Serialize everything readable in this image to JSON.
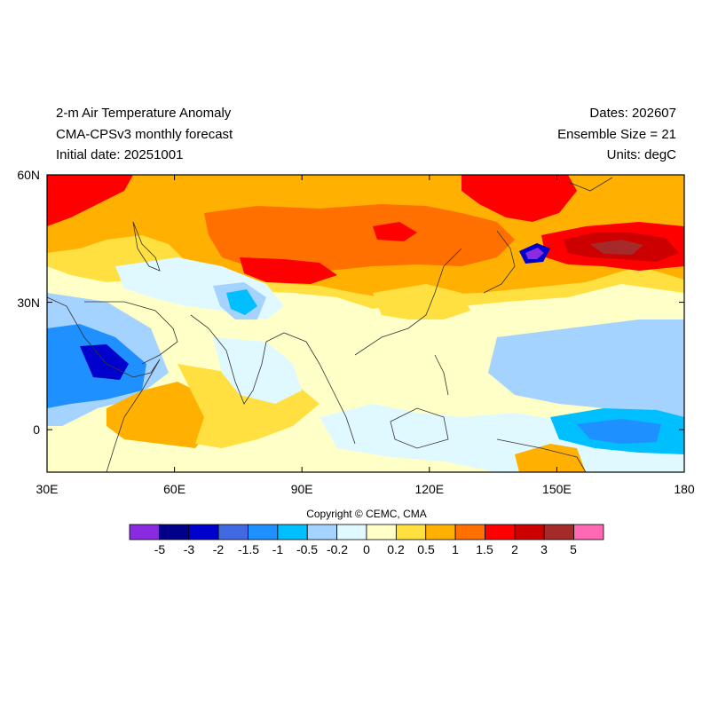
{
  "header": {
    "left_lines": [
      "2-m Air Temperature Anomaly",
      "CMA-CPSv3 monthly forecast",
      "Initial date: 20251001"
    ],
    "right_lines": [
      "Dates: 202607",
      "Ensemble Size = 21",
      "Units: degC"
    ]
  },
  "map": {
    "lon_range": [
      30,
      180
    ],
    "lat_range": [
      -10,
      60
    ],
    "x_ticks": [
      "30E",
      "60E",
      "90E",
      "120E",
      "150E",
      "180"
    ],
    "y_ticks": [
      "60N",
      "30N",
      "0"
    ]
  },
  "copyright": "Copyright © CEMC, CMA",
  "colorbar": {
    "levels": [
      "-5",
      "-3",
      "-2",
      "-1.5",
      "-1",
      "-0.5",
      "-0.2",
      "0",
      "0.2",
      "0.5",
      "1",
      "1.5",
      "2",
      "3",
      "5"
    ],
    "colors": [
      "#8a2be2",
      "#00008b",
      "#0000cd",
      "#4169e1",
      "#1e90ff",
      "#00bfff",
      "#a4d3ff",
      "#e0f8ff",
      "#ffffc8",
      "#ffe040",
      "#ffb000",
      "#ff7000",
      "#ff0000",
      "#cd0000",
      "#a52a2a",
      "#ff69b4"
    ]
  }
}
